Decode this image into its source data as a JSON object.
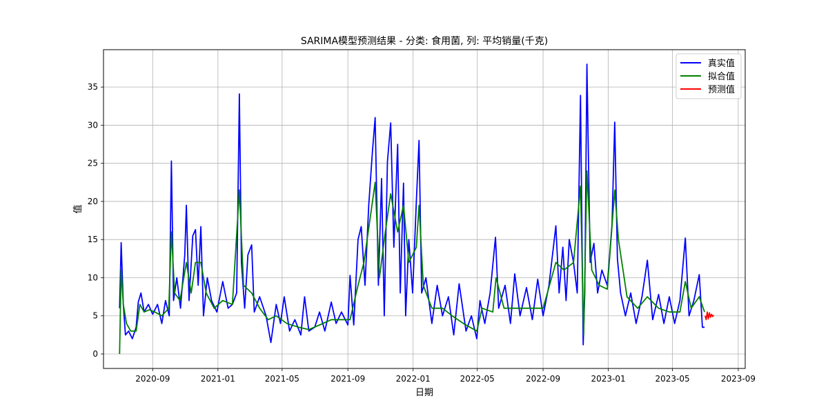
{
  "chart_data": {
    "type": "line",
    "title": "SARIMA模型预测结果 - 分类: 食用菌, 列: 平均销量(千克)",
    "xlabel": "日期",
    "ylabel": "值",
    "xlim": [
      "2020-06-01",
      "2023-09-14"
    ],
    "ylim": [
      -1.9,
      39.9
    ],
    "grid": true,
    "legend_position": "top-right",
    "x_ticks": [
      "2020-09",
      "2021-01",
      "2021-05",
      "2021-09",
      "2022-01",
      "2022-05",
      "2022-09",
      "2023-01",
      "2023-05",
      "2023-09"
    ],
    "y_ticks": [
      0,
      5,
      10,
      15,
      20,
      25,
      30,
      35
    ],
    "series": [
      {
        "name": "真实值",
        "color": "#0000ff",
        "points": [
          [
            "2020-07-01",
            6.0
          ],
          [
            "2020-07-04",
            14.6
          ],
          [
            "2020-07-08",
            6.5
          ],
          [
            "2020-07-12",
            2.5
          ],
          [
            "2020-07-18",
            3.0
          ],
          [
            "2020-07-25",
            2.0
          ],
          [
            "2020-08-01",
            3.5
          ],
          [
            "2020-08-05",
            6.8
          ],
          [
            "2020-08-10",
            8.0
          ],
          [
            "2020-08-16",
            5.5
          ],
          [
            "2020-08-24",
            6.5
          ],
          [
            "2020-09-01",
            5.2
          ],
          [
            "2020-09-10",
            6.5
          ],
          [
            "2020-09-18",
            4.0
          ],
          [
            "2020-09-25",
            7.0
          ],
          [
            "2020-10-02",
            5.0
          ],
          [
            "2020-10-06",
            25.3
          ],
          [
            "2020-10-10",
            7.0
          ],
          [
            "2020-10-16",
            10.0
          ],
          [
            "2020-10-23",
            6.0
          ],
          [
            "2020-10-31",
            13.0
          ],
          [
            "2020-11-03",
            19.5
          ],
          [
            "2020-11-08",
            7.0
          ],
          [
            "2020-11-15",
            15.5
          ],
          [
            "2020-11-20",
            16.3
          ],
          [
            "2020-11-25",
            9.0
          ],
          [
            "2020-11-30",
            16.7
          ],
          [
            "2020-12-05",
            5.0
          ],
          [
            "2020-12-12",
            10.0
          ],
          [
            "2020-12-20",
            7.0
          ],
          [
            "2020-12-30",
            5.5
          ],
          [
            "2021-01-10",
            9.5
          ],
          [
            "2021-01-20",
            6.0
          ],
          [
            "2021-01-28",
            6.5
          ],
          [
            "2021-02-05",
            8.0
          ],
          [
            "2021-02-10",
            34.1
          ],
          [
            "2021-02-14",
            12.0
          ],
          [
            "2021-02-20",
            6.0
          ],
          [
            "2021-02-26",
            13.0
          ],
          [
            "2021-03-05",
            14.3
          ],
          [
            "2021-03-10",
            5.5
          ],
          [
            "2021-03-20",
            7.5
          ],
          [
            "2021-04-01",
            5.0
          ],
          [
            "2021-04-10",
            1.5
          ],
          [
            "2021-04-20",
            6.5
          ],
          [
            "2021-04-28",
            4.0
          ],
          [
            "2021-05-05",
            7.5
          ],
          [
            "2021-05-15",
            3.0
          ],
          [
            "2021-05-25",
            4.5
          ],
          [
            "2021-06-05",
            2.5
          ],
          [
            "2021-06-12",
            7.5
          ],
          [
            "2021-06-20",
            3.0
          ],
          [
            "2021-07-01",
            3.5
          ],
          [
            "2021-07-10",
            5.5
          ],
          [
            "2021-07-20",
            3.0
          ],
          [
            "2021-08-01",
            6.8
          ],
          [
            "2021-08-10",
            4.0
          ],
          [
            "2021-08-20",
            5.5
          ],
          [
            "2021-09-01",
            3.8
          ],
          [
            "2021-09-05",
            10.3
          ],
          [
            "2021-09-12",
            3.8
          ],
          [
            "2021-09-20",
            15.0
          ],
          [
            "2021-09-26",
            16.7
          ],
          [
            "2021-10-03",
            9.0
          ],
          [
            "2021-10-10",
            19.5
          ],
          [
            "2021-10-17",
            26.6
          ],
          [
            "2021-10-22",
            31.0
          ],
          [
            "2021-10-28",
            9.0
          ],
          [
            "2021-11-03",
            23.0
          ],
          [
            "2021-11-08",
            5.0
          ],
          [
            "2021-11-14",
            25.2
          ],
          [
            "2021-11-20",
            30.3
          ],
          [
            "2021-11-26",
            14.0
          ],
          [
            "2021-12-03",
            27.5
          ],
          [
            "2021-12-08",
            8.0
          ],
          [
            "2021-12-14",
            22.4
          ],
          [
            "2021-12-18",
            5.0
          ],
          [
            "2021-12-24",
            15.0
          ],
          [
            "2021-12-31",
            8.0
          ],
          [
            "2022-01-07",
            20.0
          ],
          [
            "2022-01-12",
            28.0
          ],
          [
            "2022-01-17",
            8.0
          ],
          [
            "2022-01-25",
            10.0
          ],
          [
            "2022-02-05",
            4.0
          ],
          [
            "2022-02-15",
            9.0
          ],
          [
            "2022-02-25",
            5.0
          ],
          [
            "2022-03-08",
            7.5
          ],
          [
            "2022-03-18",
            2.5
          ],
          [
            "2022-03-28",
            9.2
          ],
          [
            "2022-04-10",
            3.0
          ],
          [
            "2022-04-20",
            5.0
          ],
          [
            "2022-04-30",
            2.0
          ],
          [
            "2022-05-06",
            7.0
          ],
          [
            "2022-05-15",
            4.0
          ],
          [
            "2022-05-25",
            8.0
          ],
          [
            "2022-06-04",
            15.3
          ],
          [
            "2022-06-10",
            6.0
          ],
          [
            "2022-06-22",
            9.0
          ],
          [
            "2022-07-02",
            4.0
          ],
          [
            "2022-07-10",
            10.5
          ],
          [
            "2022-07-20",
            5.0
          ],
          [
            "2022-08-01",
            8.7
          ],
          [
            "2022-08-12",
            4.5
          ],
          [
            "2022-08-22",
            9.8
          ],
          [
            "2022-09-01",
            5.0
          ],
          [
            "2022-09-12",
            9.0
          ],
          [
            "2022-09-25",
            16.8
          ],
          [
            "2022-10-01",
            8.0
          ],
          [
            "2022-10-08",
            14.0
          ],
          [
            "2022-10-14",
            7.0
          ],
          [
            "2022-10-20",
            15.0
          ],
          [
            "2022-10-28",
            12.0
          ],
          [
            "2022-11-04",
            8.0
          ],
          [
            "2022-11-10",
            33.9
          ],
          [
            "2022-11-15",
            1.2
          ],
          [
            "2022-11-18",
            8.0
          ],
          [
            "2022-11-22",
            38.0
          ],
          [
            "2022-11-28",
            12.0
          ],
          [
            "2022-12-05",
            14.5
          ],
          [
            "2022-12-12",
            8.0
          ],
          [
            "2022-12-20",
            11.0
          ],
          [
            "2022-12-30",
            9.0
          ],
          [
            "2023-01-08",
            17.0
          ],
          [
            "2023-01-13",
            30.4
          ],
          [
            "2023-01-18",
            12.5
          ],
          [
            "2023-01-24",
            8.0
          ],
          [
            "2023-02-02",
            5.0
          ],
          [
            "2023-02-12",
            8.0
          ],
          [
            "2023-02-22",
            4.0
          ],
          [
            "2023-03-05",
            7.5
          ],
          [
            "2023-03-15",
            12.3
          ],
          [
            "2023-03-25",
            4.5
          ],
          [
            "2023-04-05",
            7.8
          ],
          [
            "2023-04-15",
            4.0
          ],
          [
            "2023-04-25",
            7.5
          ],
          [
            "2023-05-05",
            4.0
          ],
          [
            "2023-05-15",
            7.0
          ],
          [
            "2023-05-25",
            15.2
          ],
          [
            "2023-06-01",
            5.0
          ],
          [
            "2023-06-10",
            7.0
          ],
          [
            "2023-06-20",
            10.4
          ],
          [
            "2023-06-26",
            3.5
          ],
          [
            "2023-06-30",
            3.5
          ]
        ]
      },
      {
        "name": "拟合值",
        "color": "#008000",
        "points": [
          [
            "2020-07-01",
            0.0
          ],
          [
            "2020-07-04",
            11.0
          ],
          [
            "2020-07-08",
            6.5
          ],
          [
            "2020-07-14",
            4.0
          ],
          [
            "2020-07-22",
            3.0
          ],
          [
            "2020-08-01",
            3.0
          ],
          [
            "2020-08-08",
            6.5
          ],
          [
            "2020-08-16",
            5.5
          ],
          [
            "2020-08-26",
            5.8
          ],
          [
            "2020-09-05",
            5.5
          ],
          [
            "2020-09-18",
            5.0
          ],
          [
            "2020-10-01",
            6.0
          ],
          [
            "2020-10-06",
            16.0
          ],
          [
            "2020-10-12",
            8.0
          ],
          [
            "2020-10-22",
            7.0
          ],
          [
            "2020-11-03",
            12.0
          ],
          [
            "2020-11-12",
            8.0
          ],
          [
            "2020-11-20",
            12.0
          ],
          [
            "2020-11-30",
            12.0
          ],
          [
            "2020-12-10",
            8.0
          ],
          [
            "2020-12-25",
            6.0
          ],
          [
            "2021-01-10",
            7.0
          ],
          [
            "2021-01-28",
            6.5
          ],
          [
            "2021-02-10",
            21.5
          ],
          [
            "2021-02-18",
            9.0
          ],
          [
            "2021-03-05",
            8.0
          ],
          [
            "2021-03-20",
            6.0
          ],
          [
            "2021-04-05",
            4.5
          ],
          [
            "2021-04-20",
            5.0
          ],
          [
            "2021-05-10",
            4.0
          ],
          [
            "2021-06-01",
            3.5
          ],
          [
            "2021-06-20",
            3.2
          ],
          [
            "2021-07-10",
            3.8
          ],
          [
            "2021-08-01",
            4.5
          ],
          [
            "2021-08-20",
            4.5
          ],
          [
            "2021-09-05",
            4.5
          ],
          [
            "2021-09-20",
            9.0
          ],
          [
            "2021-10-01",
            12.0
          ],
          [
            "2021-10-15",
            19.0
          ],
          [
            "2021-10-22",
            22.5
          ],
          [
            "2021-10-30",
            10.0
          ],
          [
            "2021-11-10",
            16.0
          ],
          [
            "2021-11-20",
            21.0
          ],
          [
            "2021-12-03",
            16.0
          ],
          [
            "2021-12-14",
            19.5
          ],
          [
            "2021-12-24",
            12.0
          ],
          [
            "2022-01-07",
            14.0
          ],
          [
            "2022-01-12",
            19.5
          ],
          [
            "2022-01-20",
            9.0
          ],
          [
            "2022-02-05",
            6.0
          ],
          [
            "2022-02-25",
            6.0
          ],
          [
            "2022-03-15",
            5.0
          ],
          [
            "2022-04-05",
            4.0
          ],
          [
            "2022-04-30",
            3.0
          ],
          [
            "2022-05-10",
            6.0
          ],
          [
            "2022-05-30",
            5.5
          ],
          [
            "2022-06-05",
            10.0
          ],
          [
            "2022-06-20",
            6.0
          ],
          [
            "2022-07-15",
            6.0
          ],
          [
            "2022-08-10",
            6.0
          ],
          [
            "2022-09-01",
            6.0
          ],
          [
            "2022-09-25",
            12.0
          ],
          [
            "2022-10-10",
            11.0
          ],
          [
            "2022-10-28",
            12.0
          ],
          [
            "2022-11-10",
            22.0
          ],
          [
            "2022-11-16",
            2.5
          ],
          [
            "2022-11-22",
            24.0
          ],
          [
            "2022-12-01",
            11.0
          ],
          [
            "2022-12-15",
            9.0
          ],
          [
            "2022-12-30",
            8.5
          ],
          [
            "2023-01-13",
            21.5
          ],
          [
            "2023-01-20",
            15.0
          ],
          [
            "2023-02-05",
            7.5
          ],
          [
            "2023-02-25",
            6.0
          ],
          [
            "2023-03-15",
            7.5
          ],
          [
            "2023-04-05",
            6.0
          ],
          [
            "2023-04-25",
            5.5
          ],
          [
            "2023-05-15",
            5.5
          ],
          [
            "2023-05-25",
            9.5
          ],
          [
            "2023-06-05",
            6.0
          ],
          [
            "2023-06-20",
            7.5
          ],
          [
            "2023-06-30",
            5.5
          ]
        ]
      },
      {
        "name": "预测值",
        "color": "#ff0000",
        "points": [
          [
            "2023-07-01",
            5.0
          ],
          [
            "2023-07-03",
            4.5
          ],
          [
            "2023-07-05",
            5.5
          ],
          [
            "2023-07-07",
            4.6
          ],
          [
            "2023-07-09",
            5.4
          ],
          [
            "2023-07-11",
            4.8
          ],
          [
            "2023-07-13",
            5.2
          ],
          [
            "2023-07-15",
            4.9
          ],
          [
            "2023-07-17",
            5.1
          ]
        ]
      }
    ]
  }
}
